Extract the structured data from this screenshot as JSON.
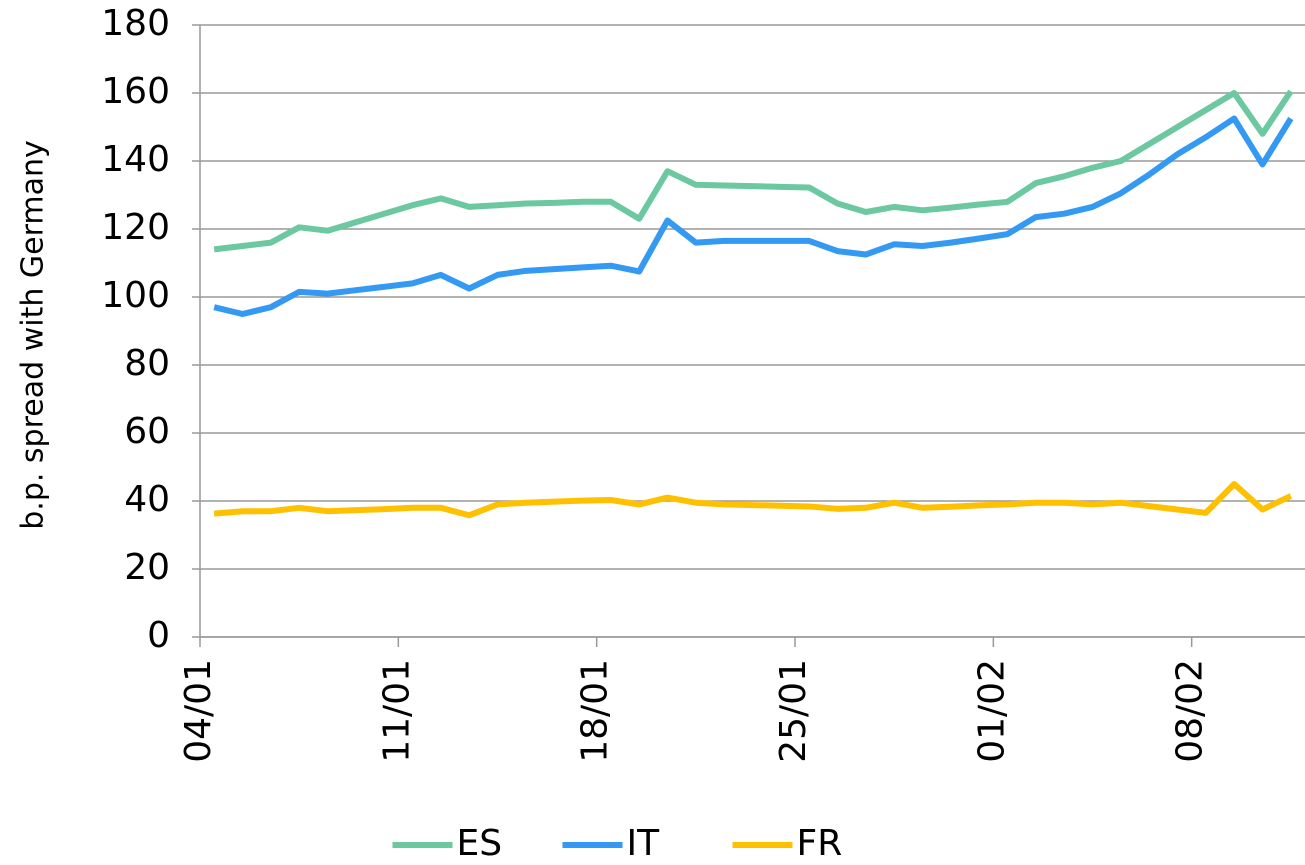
{
  "chart_data": {
    "type": "line",
    "y_label": "b.p. spread with Germany",
    "categories": [
      "04/01",
      null,
      null,
      null,
      null,
      null,
      null,
      "11/01",
      null,
      null,
      null,
      null,
      null,
      null,
      "18/01",
      null,
      null,
      null,
      null,
      null,
      null,
      "25/01",
      null,
      null,
      null,
      null,
      null,
      null,
      "01/02",
      null,
      null,
      null,
      null,
      null,
      null,
      "08/02",
      null,
      null,
      null
    ],
    "series": [
      {
        "name": "ES",
        "color": "#6cc8a0",
        "values": [
          114,
          115,
          116,
          120.5,
          119.5,
          122,
          124.5,
          127,
          129,
          126.5,
          127,
          127.5,
          127.7,
          128,
          128,
          123,
          137,
          133,
          132.8,
          132.6,
          132.4,
          132.2,
          127.5,
          125,
          126.5,
          125.5,
          126.3,
          127.2,
          128,
          133.5,
          135.5,
          138,
          140,
          145,
          150,
          155,
          160,
          148,
          160.5
        ]
      },
      {
        "name": "IT",
        "color": "#3399f3",
        "values": [
          97,
          95,
          97,
          101.5,
          101,
          102,
          103,
          104,
          106.5,
          102.5,
          106.5,
          107.7,
          108.2,
          108.7,
          109.2,
          107.5,
          122.5,
          116,
          116.5,
          116.5,
          116.5,
          116.5,
          113.5,
          112.5,
          115.5,
          115,
          116,
          117.2,
          118.5,
          123.5,
          124.5,
          126.5,
          130.5,
          136,
          142,
          147,
          152.5,
          139,
          152.5
        ]
      },
      {
        "name": "FR",
        "color": "#ffc000",
        "values": [
          36.3,
          37,
          37,
          38,
          37,
          37.3,
          37.6,
          38,
          38,
          35.8,
          39,
          39.5,
          39.8,
          40.1,
          40.3,
          39,
          41,
          39.5,
          39,
          38.8,
          38.6,
          38.4,
          37.7,
          38,
          39.5,
          38,
          38.3,
          38.7,
          39,
          39.5,
          39.5,
          39,
          39.5,
          38.5,
          37.5,
          36.5,
          45,
          37.5,
          41.5
        ]
      }
    ],
    "ylim": [
      0,
      180
    ],
    "yticks": [
      0,
      20,
      40,
      60,
      80,
      100,
      120,
      140,
      160,
      180
    ],
    "grid": true
  }
}
